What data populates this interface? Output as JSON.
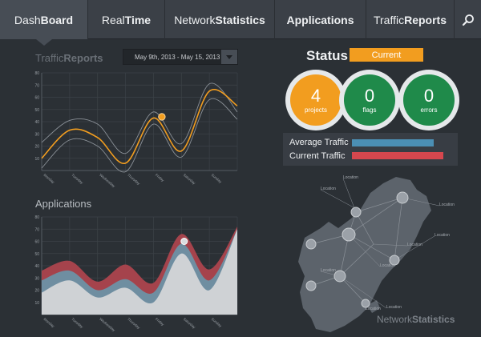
{
  "nav": {
    "tabs": [
      {
        "pre": "Dash",
        "bold": "Board"
      },
      {
        "pre": "Real",
        "bold": "Time"
      },
      {
        "pre": "Network",
        "bold": "Statistics"
      },
      {
        "pre": "",
        "bold": "Applications"
      },
      {
        "pre": "Traffic",
        "bold": "Reports"
      }
    ],
    "search_icon": "search-icon"
  },
  "traffic_reports": {
    "title_pre": "Traffic",
    "title_bold": "Reports",
    "date_range": "May 9th, 2013 - May 15, 2013",
    "chevron_icon": "chevron-down-icon"
  },
  "applications": {
    "title": "Applications"
  },
  "status": {
    "label": "Status",
    "badge": "Current",
    "projects": {
      "value": "4",
      "label": "projects"
    },
    "flags": {
      "value": "0",
      "label": "flags"
    },
    "errors": {
      "value": "0",
      "label": "errors"
    }
  },
  "traffic_legend": {
    "average_label": "Average Traffic",
    "current_label": "Current Traffic",
    "average_level": 0.85,
    "current_level": 0.95,
    "average_color": "#4b8fb4",
    "current_color": "#d6474e"
  },
  "network": {
    "title_pre": "Network",
    "title_bold": "Statistics",
    "location_label": "Location"
  },
  "chart_data": [
    {
      "type": "line",
      "yticks": [
        10,
        20,
        30,
        40,
        50,
        60,
        70,
        80
      ],
      "ylim": [
        0,
        80
      ],
      "categories": [
        "Monday",
        "Tuesday",
        "Wednesday",
        "Thursday",
        "Friday",
        "Saturday",
        "Sunday"
      ],
      "x": [
        0,
        1,
        2,
        3,
        4,
        5,
        6,
        7
      ],
      "series": [
        {
          "values": [
            23,
            41,
            38,
            14,
            48,
            22,
            71,
            48
          ],
          "color": "#8a9097"
        },
        {
          "values": [
            10,
            33,
            27,
            6,
            43,
            16,
            65,
            53
          ],
          "color": "#f29d1f"
        },
        {
          "values": [
            2,
            25,
            20,
            -1,
            38,
            11,
            58,
            42
          ],
          "color": "#8a9097"
        }
      ],
      "highlight": {
        "x": 4.3,
        "y": 44
      }
    },
    {
      "type": "area",
      "yticks": [
        10,
        20,
        30,
        40,
        50,
        60,
        70,
        80
      ],
      "ylim": [
        0,
        80
      ],
      "categories": [
        "Monday",
        "Tuesday",
        "Wednesday",
        "Thursday",
        "Friday",
        "Saturday",
        "Sunday"
      ],
      "x": [
        0,
        1,
        2,
        3,
        4,
        5,
        6,
        7
      ],
      "series": [
        {
          "values": [
            36,
            44,
            27,
            41,
            26,
            66,
            37,
            72
          ],
          "color": "#a5434c"
        },
        {
          "values": [
            28,
            36,
            20,
            29,
            18,
            58,
            28,
            70
          ],
          "color": "#6f8ea1"
        },
        {
          "values": [
            18,
            28,
            14,
            22,
            10,
            50,
            20,
            70
          ],
          "color": "#cfd2d5"
        }
      ],
      "highlight": {
        "x": 5.1,
        "y": 60
      }
    }
  ]
}
